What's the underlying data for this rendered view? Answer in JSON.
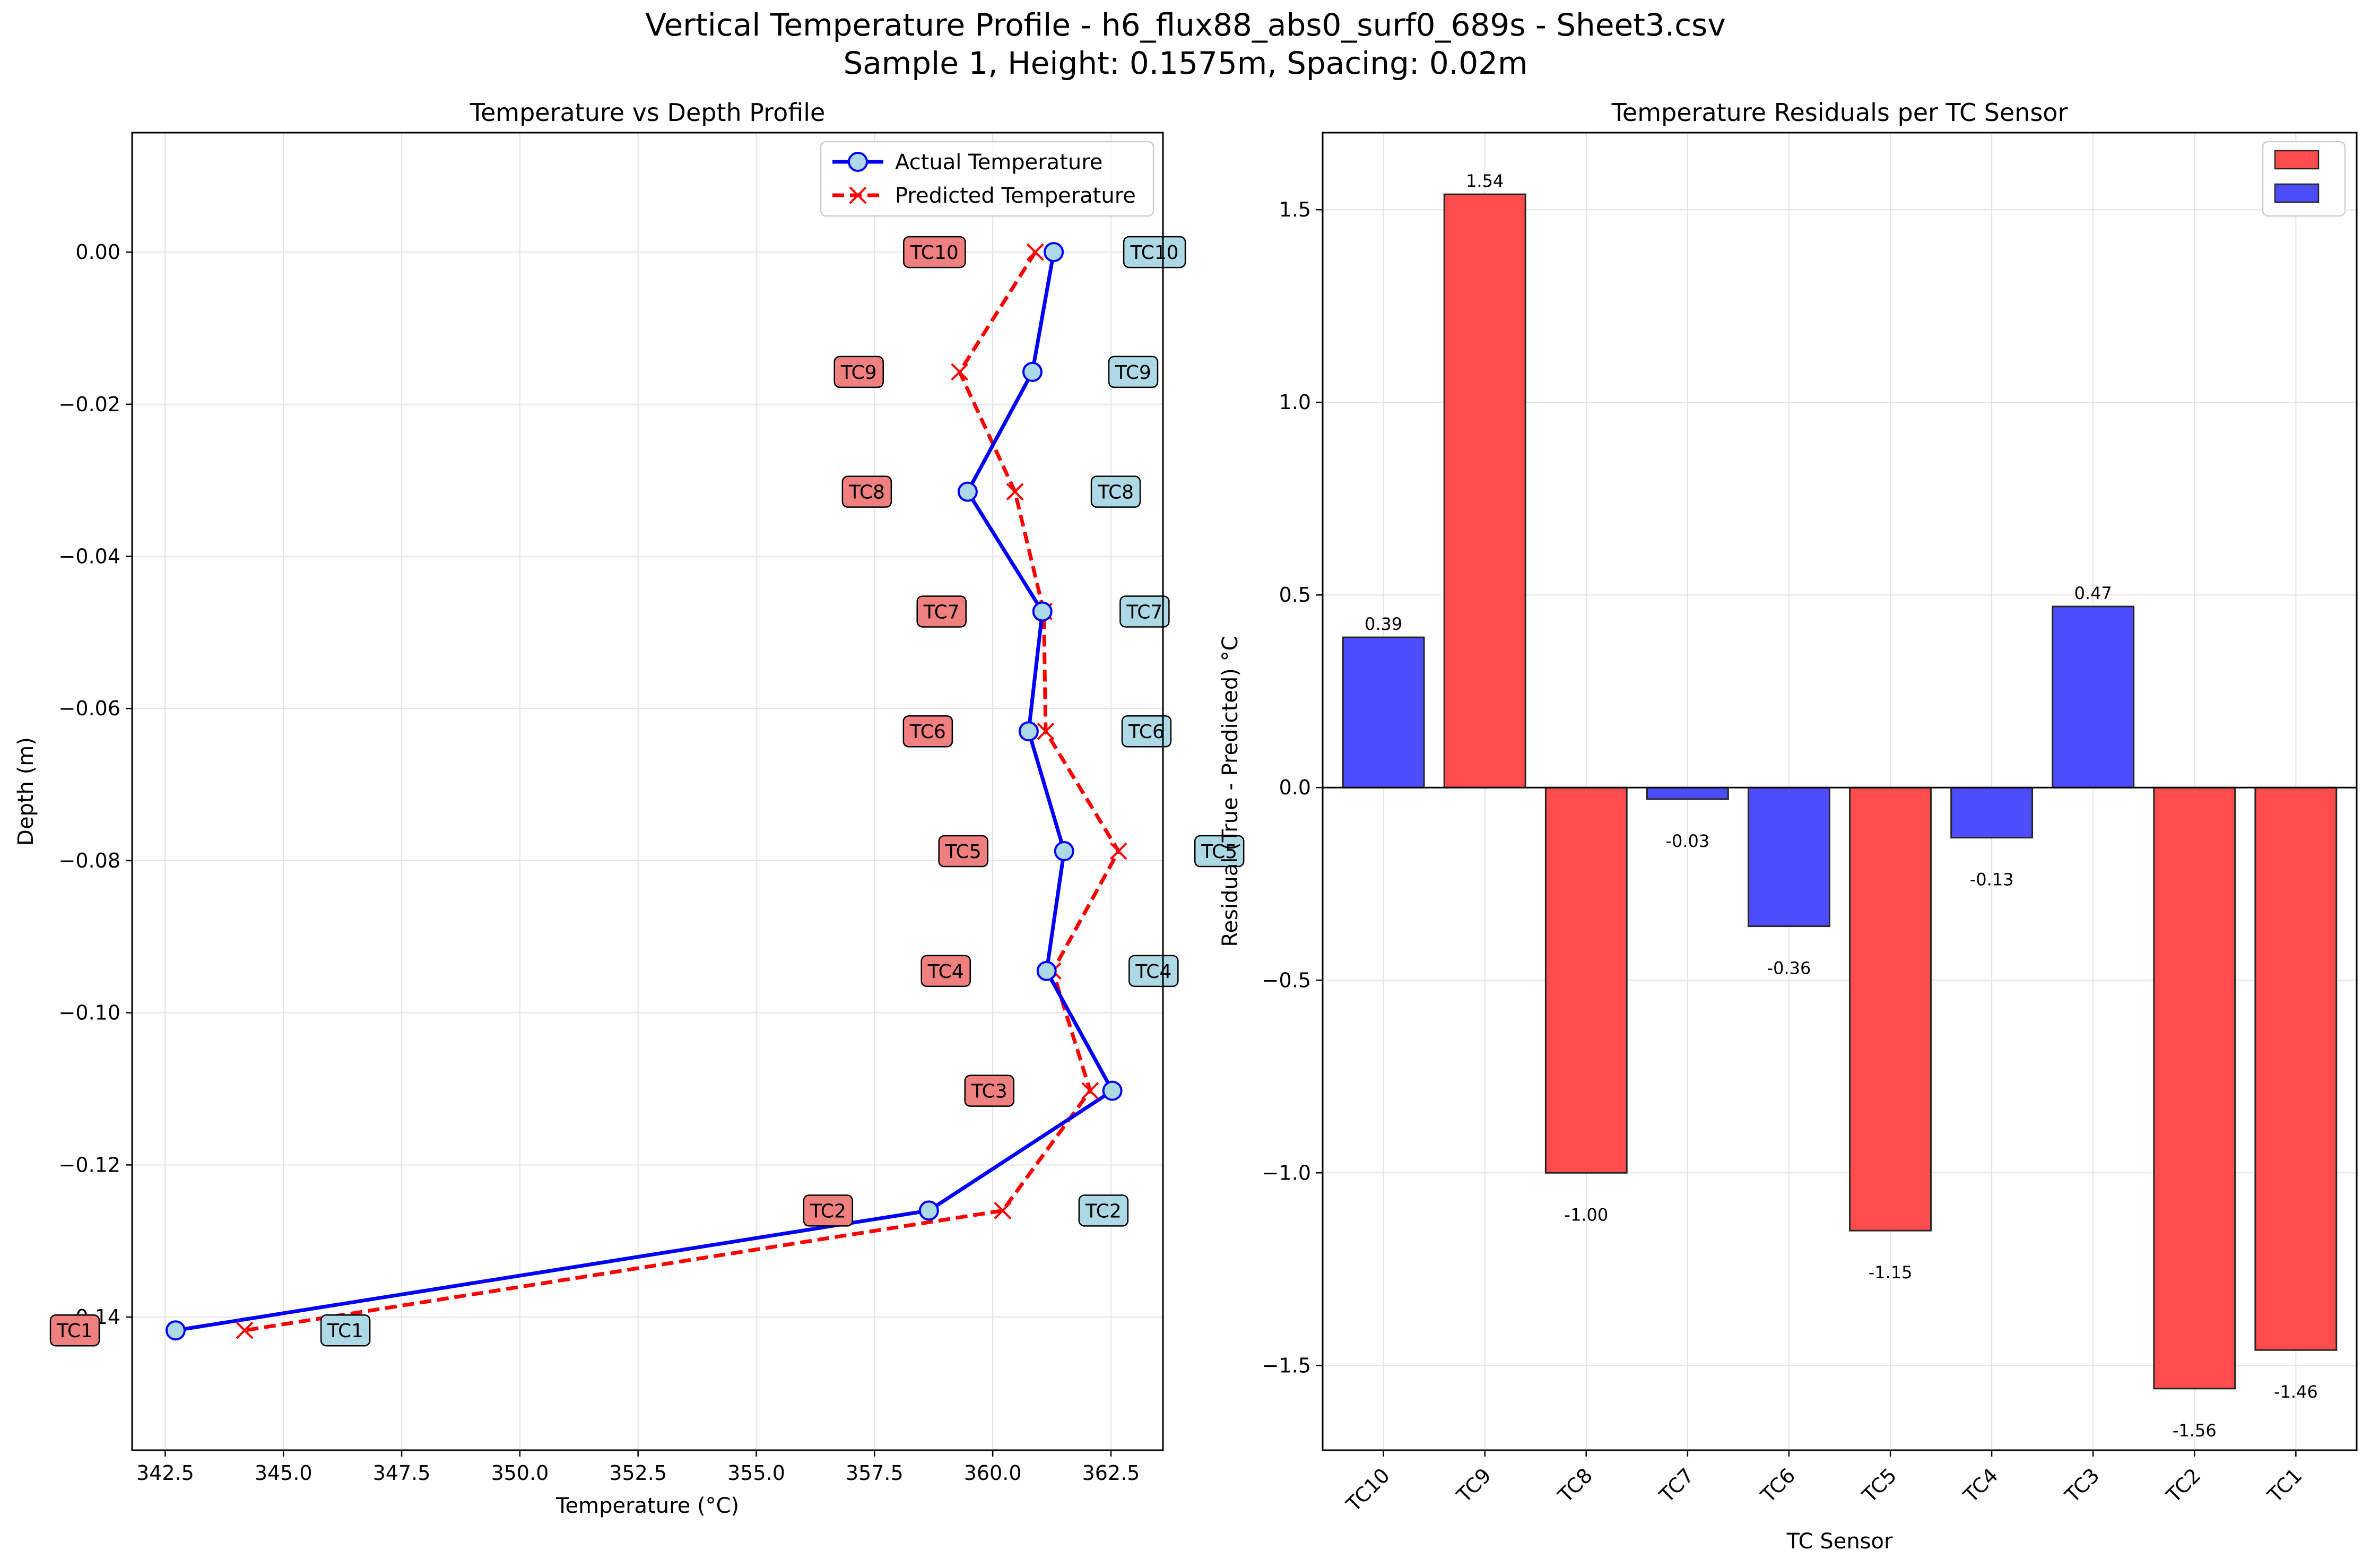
{
  "figure": {
    "title_line1": "Vertical Temperature Profile - h6_flux88_abs0_surf0_689s - Sheet3.csv",
    "title_line2": "Sample 1, Height: 0.1575m, Spacing: 0.02m"
  },
  "chart_data": [
    {
      "type": "line",
      "title": "Temperature vs Depth Profile",
      "xlabel": "Temperature (°C)",
      "ylabel": "Depth (m)",
      "xlim": [
        341.8,
        363.6
      ],
      "ylim": [
        -0.1575,
        0.0157
      ],
      "xticks": [
        342.5,
        345.0,
        347.5,
        350.0,
        352.5,
        355.0,
        357.5,
        360.0,
        362.5
      ],
      "xtick_labels": [
        "342.5",
        "345.0",
        "347.5",
        "350.0",
        "352.5",
        "355.0",
        "357.5",
        "360.0",
        "362.5"
      ],
      "yticks": [
        0.0,
        -0.02,
        -0.04,
        -0.06,
        -0.08,
        -0.1,
        -0.12,
        -0.14
      ],
      "ytick_labels": [
        "0.00",
        "−0.02",
        "−0.04",
        "−0.06",
        "−0.08",
        "−0.10",
        "−0.12",
        "−0.14"
      ],
      "grid": true,
      "legend": "upper-right",
      "sensors": [
        "TC10",
        "TC9",
        "TC8",
        "TC7",
        "TC6",
        "TC5",
        "TC4",
        "TC3",
        "TC2",
        "TC1"
      ],
      "depth": [
        0.0,
        -0.01575,
        -0.0315,
        -0.04725,
        -0.063,
        -0.07875,
        -0.0945,
        -0.11025,
        -0.126,
        -0.14175
      ],
      "series": [
        {
          "name": "Actual Temperature",
          "color": "#0000ff",
          "marker": "circle",
          "marker_face": "#add8e6",
          "linestyle": "solid",
          "label_box_color": "#add8e6",
          "temperature": [
            361.29,
            360.84,
            359.47,
            361.05,
            360.76,
            361.51,
            361.14,
            362.53,
            358.65,
            342.72
          ]
        },
        {
          "name": "Predicted Temperature",
          "color": "#ff0000",
          "marker": "x",
          "linestyle": "dashed",
          "label_box_color": "#f08080",
          "temperature": [
            360.9,
            359.3,
            360.47,
            361.08,
            361.12,
            362.66,
            361.27,
            362.06,
            360.21,
            344.18
          ]
        }
      ]
    },
    {
      "type": "bar",
      "title": "Temperature Residuals per TC Sensor",
      "xlabel": "TC Sensor",
      "ylabel": "Residual (True - Predicted) °C",
      "ylim": [
        -1.72,
        1.7
      ],
      "yticks": [
        1.5,
        1.0,
        0.5,
        0.0,
        -0.5,
        -1.0,
        -1.5
      ],
      "ytick_labels": [
        "1.5",
        "1.0",
        "0.5",
        "0.0",
        "−0.5",
        "−1.0",
        "−1.5"
      ],
      "grid": true,
      "legend": "upper-right",
      "legend_entries": [
        {
          "name": "",
          "color": "#ff4d4d"
        },
        {
          "name": "",
          "color": "#4d4dff"
        }
      ],
      "categories": [
        "TC10",
        "TC9",
        "TC8",
        "TC7",
        "TC6",
        "TC5",
        "TC4",
        "TC3",
        "TC2",
        "TC1"
      ],
      "values": [
        0.39,
        1.54,
        -1.0,
        -0.03,
        -0.36,
        -1.15,
        -0.13,
        0.47,
        -1.56,
        -1.46
      ],
      "value_labels": [
        "0.39",
        "1.54",
        "-1.00",
        "-0.03",
        "-0.36",
        "-1.15",
        "-0.13",
        "0.47",
        "-1.56",
        "-1.46"
      ],
      "bar_colors": [
        "#4d4dff",
        "#ff4d4d",
        "#ff4d4d",
        "#4d4dff",
        "#4d4dff",
        "#ff4d4d",
        "#4d4dff",
        "#4d4dff",
        "#ff4d4d",
        "#ff4d4d"
      ]
    }
  ]
}
